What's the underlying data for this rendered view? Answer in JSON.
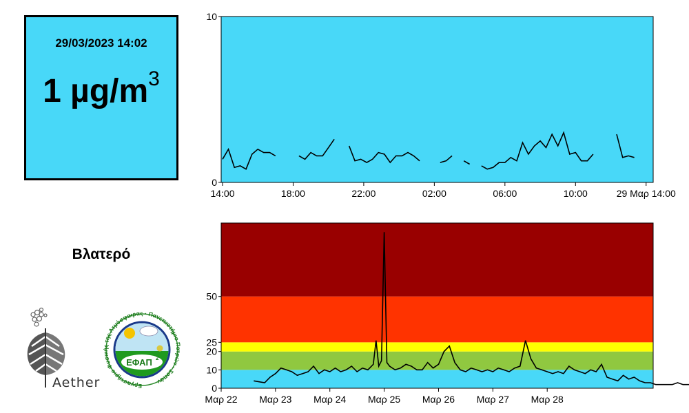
{
  "current": {
    "datetime": "29/03/2023 14:02",
    "value": "1 µg/m",
    "unit_superscript": "3"
  },
  "location": "Βλατερό",
  "logos": {
    "aether": "Aether",
    "efap_center": "ΕΦΑΠ",
    "efap_center_sup": "2",
    "efap_ring": "Εργαστήριο Φυσικής της Ατμόσφαιρας · Πανεπιστήμιο Πατρών · Σοπάν"
  },
  "colors": {
    "plot_bg": "#48d8f8",
    "band_good": "#48d8f8",
    "band_fair": "#90c840",
    "band_moderate": "#ffff00",
    "band_poor": "#ff3300",
    "band_very_poor": "#990000",
    "line": "#000000"
  },
  "chart_data": [
    {
      "type": "line",
      "title": "",
      "xlabel": "",
      "ylabel": "",
      "ylim": [
        0,
        10
      ],
      "ytick_labels": [
        "0",
        "10"
      ],
      "xtick_labels": [
        "14:00",
        "18:00",
        "22:00",
        "02:00",
        "06:00",
        "10:00",
        "29 Μαρ 14:00"
      ],
      "x_hours_from_start": [
        0.0,
        0.33,
        0.67,
        1.0,
        1.33,
        1.67,
        2.0,
        2.33,
        2.67,
        3.0,
        3.33,
        3.67,
        null,
        4.33,
        4.67,
        5.0,
        5.33,
        5.67,
        6.0,
        6.33,
        null,
        7.17,
        7.5,
        7.83,
        8.17,
        8.5,
        8.83,
        9.17,
        9.5,
        9.83,
        10.17,
        10.5,
        10.83,
        11.17,
        11.5,
        11.83,
        null,
        12.33,
        12.67,
        13.0,
        null,
        13.67,
        14.0,
        null,
        14.67,
        15.0,
        15.33,
        15.67,
        16.0,
        16.33,
        16.67,
        17.0,
        17.33,
        17.67,
        18.0,
        18.33,
        18.67,
        19.0,
        19.33,
        19.67,
        20.0,
        20.33,
        20.67,
        21.0,
        21.33,
        21.67,
        null,
        22.33,
        22.67,
        23.0,
        23.33,
        23.67,
        24.0
      ],
      "y_values": [
        1.4,
        2.0,
        0.9,
        1.0,
        0.8,
        1.7,
        2.0,
        1.8,
        1.8,
        1.6,
        null,
        null,
        null,
        1.6,
        1.4,
        1.8,
        1.6,
        1.6,
        2.1,
        2.6,
        null,
        2.2,
        1.3,
        1.4,
        1.2,
        1.4,
        1.8,
        1.7,
        1.2,
        1.6,
        1.6,
        1.8,
        1.6,
        1.3,
        null,
        null,
        null,
        1.2,
        1.3,
        1.6,
        null,
        1.3,
        1.1,
        null,
        1.0,
        0.8,
        0.9,
        1.2,
        1.2,
        1.5,
        1.3,
        2.4,
        1.7,
        2.2,
        2.5,
        2.1,
        2.9,
        2.2,
        3.0,
        1.7,
        1.8,
        1.3,
        1.3,
        1.7,
        null,
        null,
        null,
        2.9,
        1.5,
        1.6,
        1.5,
        null,
        null
      ]
    },
    {
      "type": "line",
      "title": "",
      "xlabel": "",
      "ylabel": "",
      "ylim": [
        0,
        90
      ],
      "ytick_labels": [
        "0",
        "10",
        "20",
        "25",
        "50"
      ],
      "bands": [
        {
          "from": 0,
          "to": 10,
          "color_key": "band_good"
        },
        {
          "from": 10,
          "to": 20,
          "color_key": "band_fair"
        },
        {
          "from": 20,
          "to": 25,
          "color_key": "band_moderate"
        },
        {
          "from": 25,
          "to": 50,
          "color_key": "band_poor"
        },
        {
          "from": 50,
          "to": 90,
          "color_key": "band_very_poor"
        }
      ],
      "xtick_labels": [
        "Μαρ 22",
        "Μαρ 23",
        "Μαρ 24",
        "Μαρ 25",
        "Μαρ 26",
        "Μαρ 27",
        "Μαρ 28"
      ],
      "x_days_from_start": [
        0.6,
        0.8,
        0.9,
        1.0,
        1.1,
        1.2,
        1.3,
        1.4,
        1.5,
        1.6,
        1.7,
        1.8,
        1.9,
        2.0,
        2.1,
        2.2,
        2.3,
        2.4,
        2.5,
        2.6,
        2.7,
        2.8,
        2.85,
        2.9,
        2.95,
        3.0,
        3.05,
        3.1,
        3.2,
        3.3,
        3.4,
        3.5,
        3.6,
        3.7,
        3.8,
        3.9,
        4.0,
        4.1,
        4.2,
        4.3,
        4.4,
        4.5,
        4.6,
        4.7,
        4.8,
        4.9,
        5.0,
        5.1,
        5.2,
        5.3,
        5.4,
        5.5,
        5.6,
        5.7,
        5.8,
        5.9,
        6.0,
        6.1,
        6.2,
        6.3,
        6.4,
        6.5,
        6.6,
        6.7,
        6.8,
        6.9,
        7.0,
        7.1,
        7.2,
        7.3,
        7.4,
        7.5,
        7.6,
        7.7,
        7.8,
        7.9,
        8.0,
        8.1,
        8.2,
        8.3,
        8.4,
        8.5,
        8.6,
        8.7,
        8.8,
        9.0
      ],
      "y_values": [
        4,
        3,
        6,
        8,
        11,
        10,
        9,
        7,
        8,
        9,
        12,
        8,
        10,
        9,
        11,
        9,
        10,
        12,
        9,
        11,
        10,
        13,
        26,
        12,
        15,
        85,
        14,
        12,
        10,
        11,
        13,
        12,
        10,
        10,
        14,
        11,
        13,
        20,
        23,
        14,
        10,
        9,
        11,
        10,
        9,
        10,
        9,
        11,
        10,
        9,
        11,
        12,
        26,
        16,
        11,
        10,
        9,
        8,
        9,
        8,
        12,
        10,
        9,
        8,
        10,
        9,
        13,
        6,
        5,
        4,
        7,
        5,
        6,
        4,
        3,
        3,
        2,
        2,
        2,
        2,
        3,
        2,
        2,
        2,
        3,
        2
      ]
    }
  ]
}
